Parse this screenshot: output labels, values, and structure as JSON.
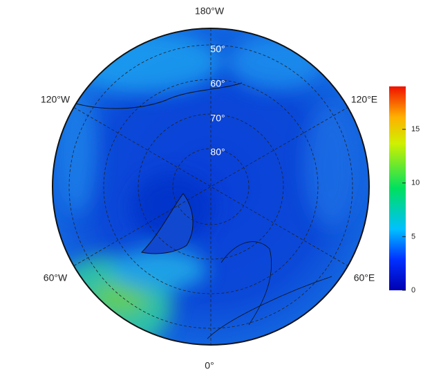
{
  "map": {
    "lon_labels": [
      "180°W",
      "120°W",
      "120°E",
      "60°W",
      "60°E",
      "0°"
    ],
    "lat_labels": [
      "50°",
      "60°",
      "70°",
      "80°"
    ],
    "colorbar": {
      "lim": [
        0,
        19
      ],
      "ticks": [
        0,
        5,
        10,
        15
      ]
    }
  }
}
